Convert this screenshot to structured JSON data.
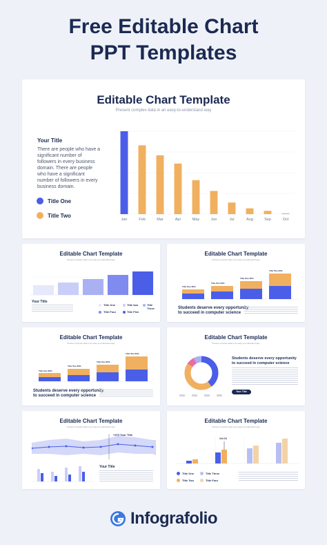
{
  "page": {
    "title_line1": "Free Editable Chart",
    "title_line2": "PPT Templates",
    "brand": "Infografolio",
    "accent_blue": "#4a5ee8",
    "accent_orange": "#f0b060",
    "navy": "#1b2a52"
  },
  "main_slide": {
    "title": "Editable Chart Template",
    "subtitle": "Present complex data in an easy-to-understand way",
    "side_title": "Your Title",
    "side_text": "There are people who have a significant number of followers in every business domain. There are people who have a significant number of followers in every business domain.",
    "legend": [
      {
        "label": "Title One",
        "color": "#4a5ee8"
      },
      {
        "label": "Title Two",
        "color": "#f0b060"
      }
    ]
  },
  "thumbnails": {
    "title": "Editable Chart Template",
    "subtitle": "Present complex data in an easy-to-understand way",
    "t1": {
      "side_title": "Your Title",
      "legend": [
        "Title One",
        "Title two",
        "Title Three",
        "Title Four",
        "Title Five"
      ]
    },
    "t2": {
      "heading_line1": "Students deserve every opportunity",
      "heading_line2": "to succeed in computer science",
      "bar_labels": [
        "Title One 80%",
        "Title Two 60%",
        "Title One 80%",
        "Title Two 60%"
      ]
    },
    "t3": {
      "heading_line1": "Students deserve every opportunity",
      "heading_line2": "to succeed in computer science",
      "bar_labels": [
        "Title One 80%",
        "Title Two 60%",
        "Title One 80%",
        "Title Two 60%"
      ]
    },
    "t4": {
      "heading_line1": "Students deserve every opportunity",
      "heading_line2": "to succeed in computer science",
      "button": "Your Title"
    },
    "t5": {
      "callout": "+470 Your Title",
      "side_title": "Your Title"
    },
    "t6": {
      "callout": "Oct 16",
      "legend": [
        "Title One",
        "Title Three",
        "Title Two",
        "Title Four"
      ]
    }
  },
  "chart_data": [
    {
      "type": "bar",
      "categories": [
        "Jan",
        "Feb",
        "Mar",
        "Apr",
        "May",
        "Jun",
        "Jul",
        "Aug",
        "Sep",
        "Oct"
      ],
      "values": [
        100,
        83,
        71,
        61,
        41,
        28,
        14,
        7,
        4,
        1
      ],
      "ylim": [
        0,
        100
      ]
    }
  ]
}
